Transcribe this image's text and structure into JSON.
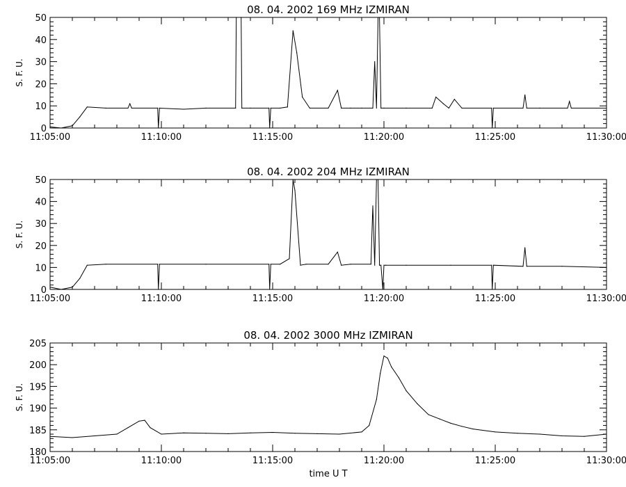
{
  "chart_data": [
    {
      "type": "line",
      "title": "08. 04. 2002   169 MHz   IZMIRAN",
      "ylabel": "S. F. U.",
      "xlabel": "",
      "xlim": [
        "11:05:00",
        "11:30:00"
      ],
      "ylim": [
        0,
        50
      ],
      "xticks": [
        "11:05:00",
        "11:10:00",
        "11:15:00",
        "11:20:00",
        "11:25:00",
        "11:30:00"
      ],
      "yticks": [
        0,
        10,
        20,
        30,
        40,
        50
      ],
      "grid": false,
      "series": [
        {
          "color": "#000000",
          "x": [
            "11:05:00",
            "11:05:30",
            "11:06:00",
            "11:06:20",
            "11:06:40",
            "11:07:30",
            "11:08:30",
            "11:08:35",
            "11:08:40",
            "11:09:50",
            "11:09:52",
            "11:09:55",
            "11:11:00",
            "11:12:00",
            "11:13:20",
            "11:13:22",
            "11:13:35",
            "11:13:37",
            "11:14:00",
            "11:14:50",
            "11:14:52",
            "11:14:55",
            "11:15:20",
            "11:15:40",
            "11:15:55",
            "11:16:05",
            "11:16:20",
            "11:16:40",
            "11:17:30",
            "11:17:55",
            "11:18:05",
            "11:18:30",
            "11:19:00",
            "11:19:30",
            "11:19:35",
            "11:19:40",
            "11:19:44",
            "11:19:48",
            "11:19:52",
            "11:20:00",
            "11:21:00",
            "11:22:10",
            "11:22:20",
            "11:22:40",
            "11:22:55",
            "11:23:10",
            "11:23:30",
            "11:24:50",
            "11:24:52",
            "11:24:55",
            "11:26:15",
            "11:26:20",
            "11:26:25",
            "11:27:00",
            "11:28:15",
            "11:28:20",
            "11:28:25",
            "11:30:00"
          ],
          "y": [
            0.5,
            0,
            1,
            5,
            9.5,
            9,
            9,
            11,
            9,
            9,
            0,
            9,
            8.5,
            9,
            9,
            50,
            50,
            9,
            9,
            9,
            0,
            9,
            9,
            9.5,
            44,
            34,
            14,
            9,
            9,
            17,
            9,
            9,
            9,
            9,
            30,
            9,
            50,
            50,
            9,
            9,
            9,
            9,
            14,
            11,
            9,
            13,
            9,
            9,
            0,
            9,
            9,
            15,
            9,
            9,
            9,
            12,
            9,
            9
          ]
        }
      ]
    },
    {
      "type": "line",
      "title": "08. 04. 2002   204 MHz   IZMIRAN",
      "ylabel": "S. F. U.",
      "xlabel": "",
      "xlim": [
        "11:05:00",
        "11:30:00"
      ],
      "ylim": [
        0,
        50
      ],
      "xticks": [
        "11:05:00",
        "11:10:00",
        "11:15:00",
        "11:20:00",
        "11:25:00",
        "11:30:00"
      ],
      "yticks": [
        0,
        10,
        20,
        30,
        40,
        50
      ],
      "grid": false,
      "series": [
        {
          "color": "#000000",
          "x": [
            "11:05:00",
            "11:05:30",
            "11:06:00",
            "11:06:20",
            "11:06:40",
            "11:07:30",
            "11:09:50",
            "11:09:52",
            "11:09:55",
            "11:12:00",
            "11:14:50",
            "11:14:52",
            "11:14:55",
            "11:15:20",
            "11:15:45",
            "11:15:55",
            "11:16:00",
            "11:16:15",
            "11:16:30",
            "11:17:30",
            "11:17:55",
            "11:18:05",
            "11:18:30",
            "11:19:25",
            "11:19:30",
            "11:19:35",
            "11:19:40",
            "11:19:44",
            "11:19:48",
            "11:19:52",
            "11:19:57",
            "11:20:00",
            "11:20:05",
            "11:21:00",
            "11:23:00",
            "11:24:50",
            "11:24:52",
            "11:24:55",
            "11:26:15",
            "11:26:20",
            "11:26:25",
            "11:28:00",
            "11:30:00"
          ],
          "y": [
            1,
            0,
            1,
            5,
            11,
            11.5,
            11.5,
            0,
            11.5,
            11.5,
            11.5,
            0,
            11.5,
            11.5,
            14,
            50,
            45,
            11,
            11.5,
            11.5,
            17,
            11,
            11.5,
            11.5,
            38,
            11,
            50,
            50,
            11,
            11,
            0,
            11,
            11,
            11,
            11,
            11,
            0,
            11,
            10.5,
            19,
            10.5,
            10.5,
            10
          ]
        }
      ]
    },
    {
      "type": "line",
      "title": "08. 04. 2002   3000 MHz   IZMIRAN",
      "ylabel": "S. F. U.",
      "xlabel": "time  U T",
      "xlim": [
        "11:05:00",
        "11:30:00"
      ],
      "ylim": [
        180,
        205
      ],
      "xticks": [
        "11:05:00",
        "11:10:00",
        "11:15:00",
        "11:20:00",
        "11:25:00",
        "11:30:00"
      ],
      "yticks": [
        180,
        185,
        190,
        195,
        200,
        205
      ],
      "grid": false,
      "series": [
        {
          "color": "#000000",
          "x": [
            "11:05:00",
            "11:06:00",
            "11:07:00",
            "11:08:00",
            "11:08:30",
            "11:09:00",
            "11:09:15",
            "11:09:30",
            "11:10:00",
            "11:11:00",
            "11:12:00",
            "11:13:00",
            "11:14:00",
            "11:15:00",
            "11:16:00",
            "11:17:00",
            "11:18:00",
            "11:19:00",
            "11:19:20",
            "11:19:40",
            "11:19:50",
            "11:20:00",
            "11:20:10",
            "11:20:20",
            "11:20:40",
            "11:21:00",
            "11:21:30",
            "11:22:00",
            "11:22:30",
            "11:23:00",
            "11:23:30",
            "11:24:00",
            "11:25:00",
            "11:26:00",
            "11:27:00",
            "11:28:00",
            "11:29:00",
            "11:30:00"
          ],
          "y": [
            183.5,
            183.2,
            183.6,
            184,
            185.5,
            187,
            187.2,
            185.5,
            184,
            184.3,
            184.2,
            184.1,
            184.3,
            184.4,
            184.2,
            184.1,
            184,
            184.5,
            186,
            192,
            198,
            202,
            201.5,
            199.5,
            197,
            194,
            191,
            188.5,
            187.5,
            186.5,
            185.8,
            185.2,
            184.5,
            184.2,
            184,
            183.6,
            183.5,
            184
          ]
        }
      ]
    }
  ]
}
